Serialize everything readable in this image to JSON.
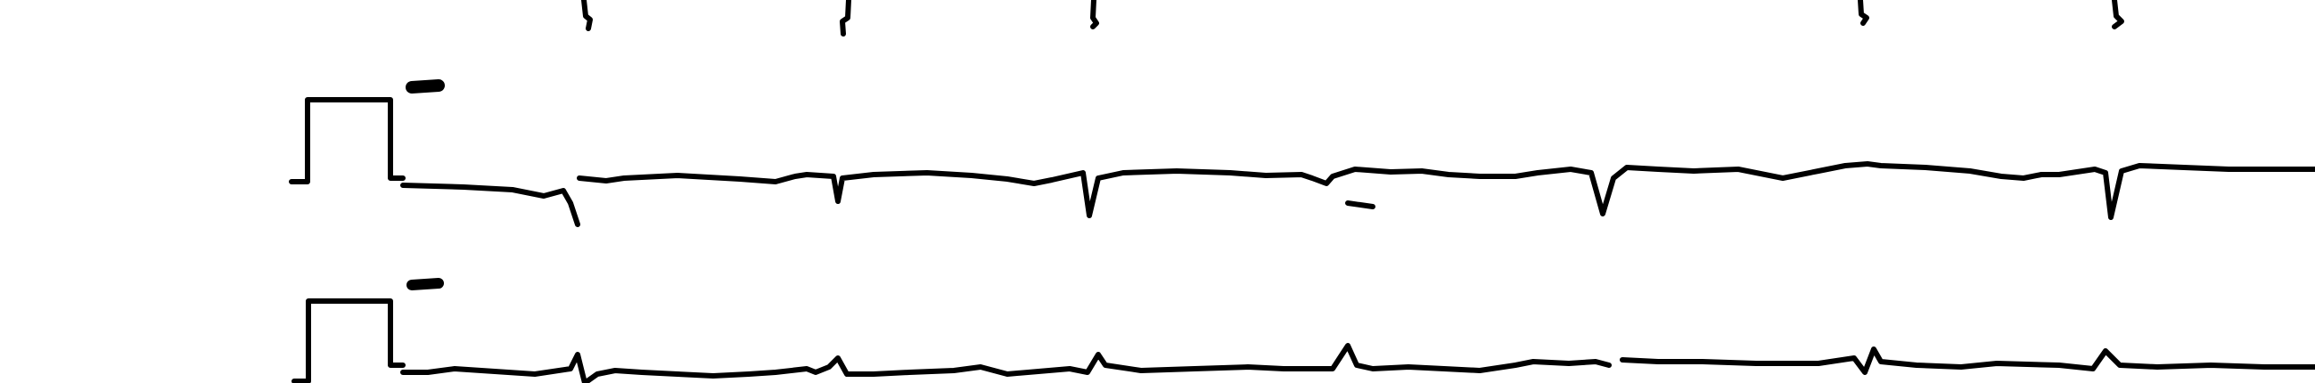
{
  "figure": {
    "kind": "ecg-strip",
    "description_visible_text": "",
    "colors": {
      "background": "#ffffff",
      "ink": "#000000"
    },
    "rows": [
      {
        "name": "top-row-fragment",
        "calibration_pulse": false
      },
      {
        "name": "middle-row",
        "calibration_pulse": true
      },
      {
        "name": "bottom-row",
        "calibration_pulse": true
      }
    ]
  }
}
